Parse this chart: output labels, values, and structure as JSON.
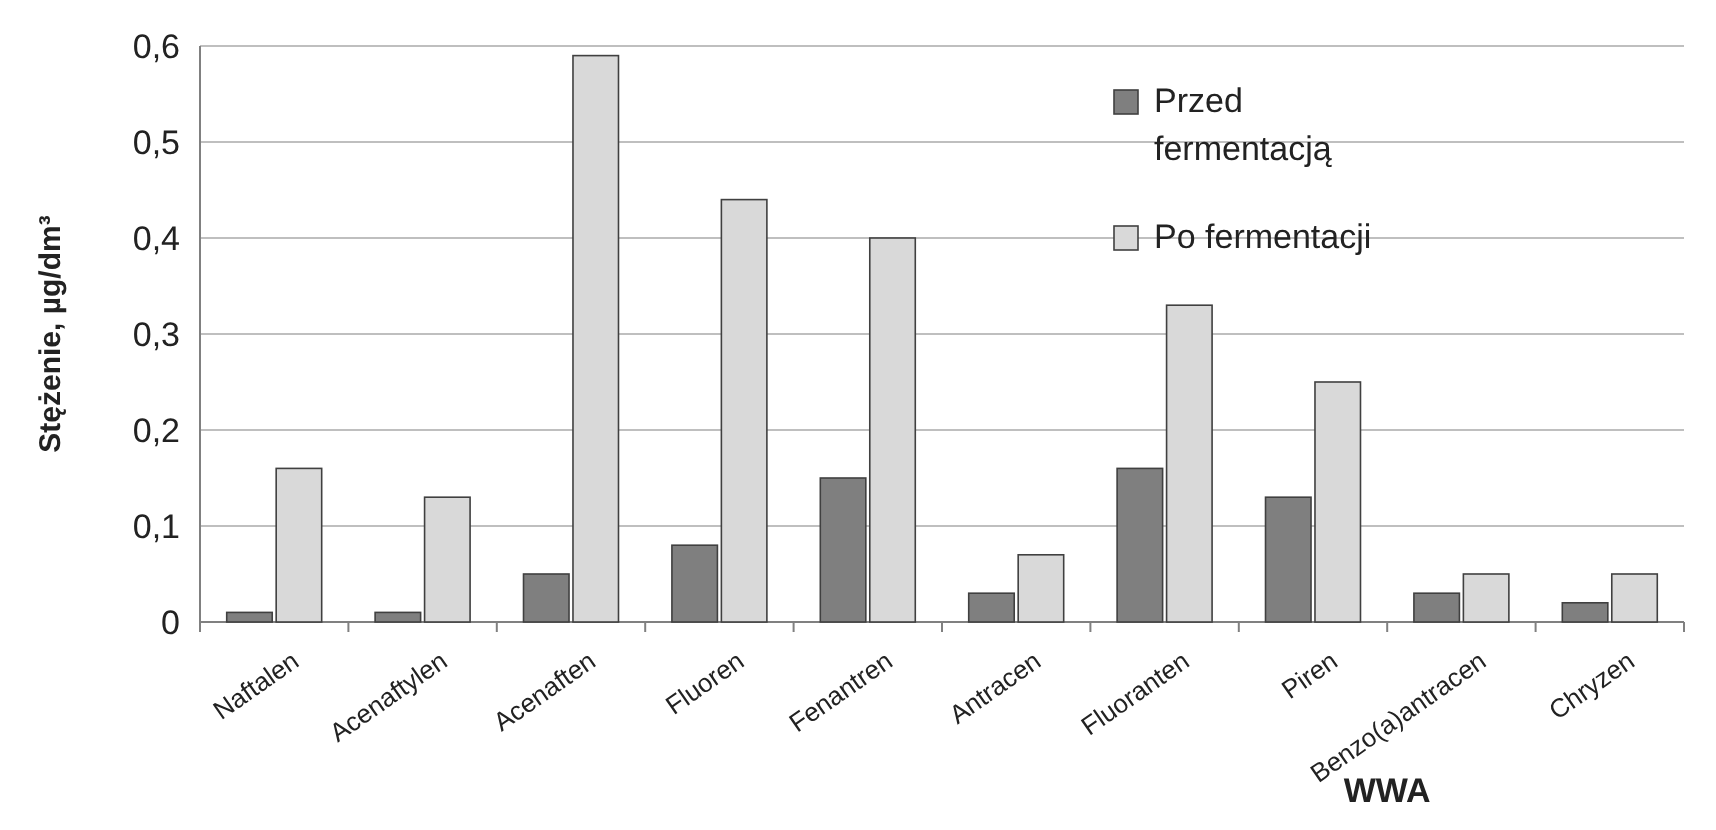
{
  "chart_data": {
    "type": "bar",
    "ylabel": "Stężenie, µg/dm³",
    "xlabel": "WWA",
    "categories": [
      "Naftalen",
      "Acenaftylen",
      "Acenaften",
      "Fluoren",
      "Fenantren",
      "Antracen",
      "Fluoranten",
      "Piren",
      "Benzo(a)antracen",
      "Chryzen"
    ],
    "series": [
      {
        "name": "Przed fermentacją",
        "color": "#7f7f7f",
        "values": [
          0.01,
          0.01,
          0.05,
          0.08,
          0.15,
          0.03,
          0.16,
          0.13,
          0.03,
          0.02
        ]
      },
      {
        "name": "Po fermentacji",
        "color": "#d9d9d9",
        "values": [
          0.16,
          0.13,
          0.59,
          0.44,
          0.4,
          0.07,
          0.33,
          0.25,
          0.05,
          0.05
        ]
      }
    ],
    "ylim": [
      0,
      0.6
    ],
    "yticks": [
      {
        "value": 0,
        "label": "0"
      },
      {
        "value": 0.1,
        "label": "0,1"
      },
      {
        "value": 0.2,
        "label": "0,2"
      },
      {
        "value": 0.3,
        "label": "0,3"
      },
      {
        "value": 0.4,
        "label": "0,4"
      },
      {
        "value": 0.5,
        "label": "0,5"
      },
      {
        "value": 0.6,
        "label": "0,6"
      }
    ],
    "grid": "y",
    "legend": "top right"
  }
}
